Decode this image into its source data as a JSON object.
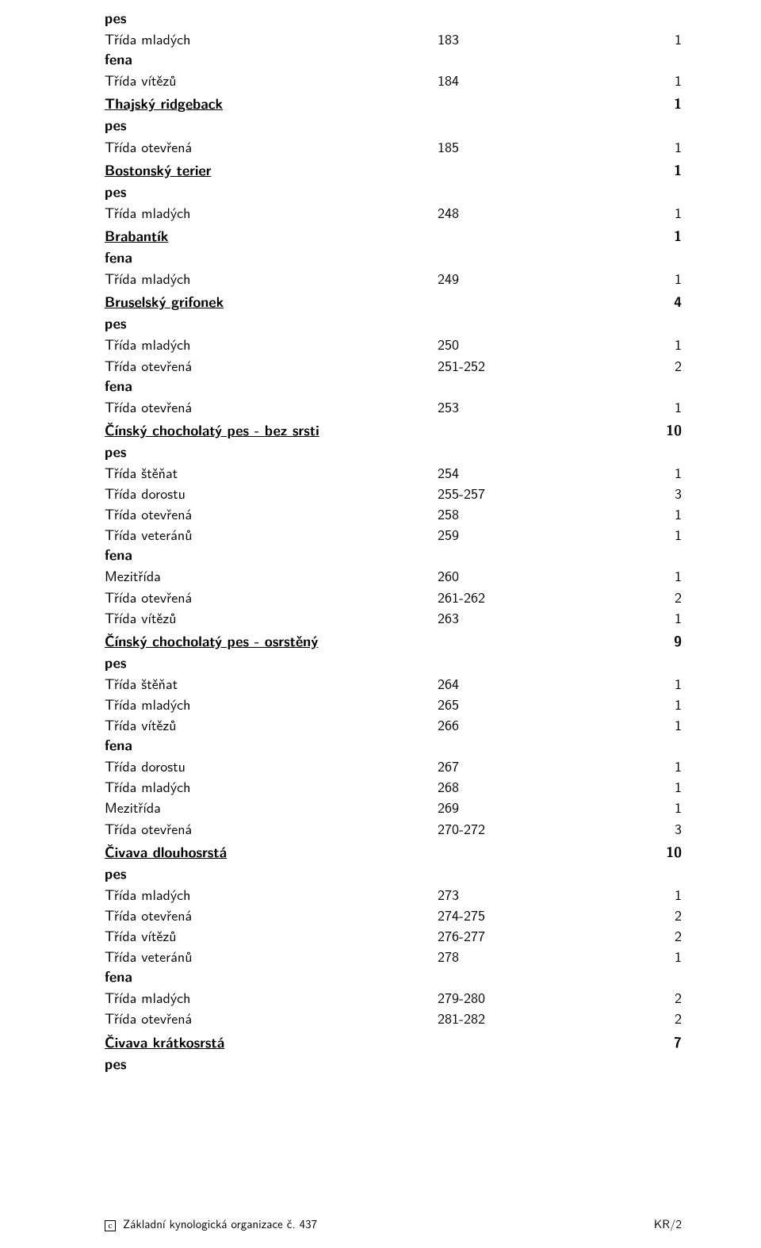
{
  "rows": [
    {
      "type": "bold",
      "c1": "pes"
    },
    {
      "type": "plain",
      "c1": "Třída mladých",
      "c2": "183",
      "c3": "1"
    },
    {
      "type": "bold",
      "c1": "fena"
    },
    {
      "type": "plain",
      "c1": "Třída vítězů",
      "c2": "184",
      "c3": "1"
    },
    {
      "type": "breed",
      "c1": "Thajský ridgeback",
      "c3": "1"
    },
    {
      "type": "bold",
      "c1": "pes"
    },
    {
      "type": "plain",
      "c1": "Třída otevřená",
      "c2": "185",
      "c3": "1"
    },
    {
      "type": "breed",
      "c1": "Bostonský terier",
      "c3": "1"
    },
    {
      "type": "bold",
      "c1": "pes"
    },
    {
      "type": "plain",
      "c1": "Třída mladých",
      "c2": "248",
      "c3": "1"
    },
    {
      "type": "breed",
      "c1": "Brabantík",
      "c3": "1"
    },
    {
      "type": "bold",
      "c1": "fena"
    },
    {
      "type": "plain",
      "c1": "Třída mladých",
      "c2": "249",
      "c3": "1"
    },
    {
      "type": "breed",
      "c1": "Bruselský grifonek",
      "c3": "4"
    },
    {
      "type": "bold",
      "c1": "pes"
    },
    {
      "type": "plain",
      "c1": "Třída mladých",
      "c2": "250",
      "c3": "1"
    },
    {
      "type": "plain",
      "c1": "Třída otevřená",
      "c2": "251-252",
      "c3": "2"
    },
    {
      "type": "bold",
      "c1": "fena"
    },
    {
      "type": "plain",
      "c1": "Třída otevřená",
      "c2": "253",
      "c3": "1"
    },
    {
      "type": "breed",
      "c1": "Čínský chocholatý pes - bez srsti",
      "c3": "10"
    },
    {
      "type": "bold",
      "c1": "pes"
    },
    {
      "type": "plain",
      "c1": "Třída štěňat",
      "c2": "254",
      "c3": "1"
    },
    {
      "type": "plain",
      "c1": "Třída dorostu",
      "c2": "255-257",
      "c3": "3"
    },
    {
      "type": "plain",
      "c1": "Třída otevřená",
      "c2": "258",
      "c3": "1"
    },
    {
      "type": "plain",
      "c1": "Třída veteránů",
      "c2": "259",
      "c3": "1"
    },
    {
      "type": "bold",
      "c1": "fena"
    },
    {
      "type": "plain",
      "c1": "Mezitřída",
      "c2": "260",
      "c3": "1"
    },
    {
      "type": "plain",
      "c1": "Třída otevřená",
      "c2": "261-262",
      "c3": "2"
    },
    {
      "type": "plain",
      "c1": "Třída vítězů",
      "c2": "263",
      "c3": "1"
    },
    {
      "type": "breed",
      "c1": "Čínský chocholatý pes - osrstěný",
      "c3": "9"
    },
    {
      "type": "bold",
      "c1": "pes"
    },
    {
      "type": "plain",
      "c1": "Třída štěňat",
      "c2": "264",
      "c3": "1"
    },
    {
      "type": "plain",
      "c1": "Třída mladých",
      "c2": "265",
      "c3": "1"
    },
    {
      "type": "plain",
      "c1": "Třída vítězů",
      "c2": "266",
      "c3": "1"
    },
    {
      "type": "bold",
      "c1": "fena"
    },
    {
      "type": "plain",
      "c1": "Třída dorostu",
      "c2": "267",
      "c3": "1"
    },
    {
      "type": "plain",
      "c1": "Třída mladých",
      "c2": "268",
      "c3": "1"
    },
    {
      "type": "plain",
      "c1": "Mezitřída",
      "c2": "269",
      "c3": "1"
    },
    {
      "type": "plain",
      "c1": "Třída otevřená",
      "c2": "270-272",
      "c3": "3"
    },
    {
      "type": "breed",
      "c1": "Čivava dlouhosrstá",
      "c3": "10"
    },
    {
      "type": "bold",
      "c1": "pes"
    },
    {
      "type": "plain",
      "c1": "Třída mladých",
      "c2": "273",
      "c3": "1"
    },
    {
      "type": "plain",
      "c1": "Třída otevřená",
      "c2": "274-275",
      "c3": "2"
    },
    {
      "type": "plain",
      "c1": "Třída vítězů",
      "c2": "276-277",
      "c3": "2"
    },
    {
      "type": "plain",
      "c1": "Třída veteránů",
      "c2": "278",
      "c3": "1"
    },
    {
      "type": "bold",
      "c1": "fena"
    },
    {
      "type": "plain",
      "c1": "Třída mladých",
      "c2": "279-280",
      "c3": "2"
    },
    {
      "type": "plain",
      "c1": "Třída otevřená",
      "c2": "281-282",
      "c3": "2"
    },
    {
      "type": "breed",
      "c1": "Čivava krátkosrstá",
      "c3": "7"
    },
    {
      "type": "bold",
      "c1": "pes"
    }
  ],
  "footer": {
    "copyright_symbol": "c",
    "left_text": "Základní kynologická organizace č. 437",
    "right_text": "KR/2"
  }
}
